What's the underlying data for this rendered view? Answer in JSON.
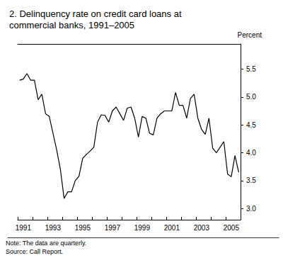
{
  "chart_data": {
    "type": "line",
    "title": "2. Delinquency rate on credit card loans at commercial banks, 1991–2005",
    "y_label": "Percent",
    "notes": [
      "Note: The data are quarterly.",
      "Source: Call Report."
    ],
    "categories": [
      null,
      "1991",
      null,
      null,
      null,
      null,
      null,
      null,
      null,
      "1993",
      null,
      null,
      null,
      null,
      null,
      null,
      null,
      "1995",
      null,
      null,
      null,
      null,
      null,
      null,
      null,
      "1997",
      null,
      null,
      null,
      null,
      null,
      null,
      null,
      "1999",
      null,
      null,
      null,
      null,
      null,
      null,
      null,
      "2001",
      null,
      null,
      null,
      null,
      null,
      null,
      null,
      "2003",
      null,
      null,
      null,
      null,
      null,
      null,
      null,
      "2005",
      null,
      null
    ],
    "values": [
      5.3,
      5.32,
      5.42,
      5.3,
      5.3,
      4.95,
      5.05,
      4.7,
      4.65,
      4.35,
      4.05,
      3.7,
      3.18,
      3.3,
      3.3,
      3.5,
      3.58,
      3.9,
      3.97,
      4.03,
      4.1,
      4.55,
      4.68,
      4.67,
      4.55,
      4.75,
      4.82,
      4.7,
      4.58,
      4.8,
      4.82,
      4.62,
      4.28,
      4.65,
      4.62,
      4.35,
      4.32,
      4.62,
      4.7,
      4.75,
      4.75,
      4.75,
      5.08,
      4.85,
      4.85,
      4.62,
      4.97,
      5.05,
      4.62,
      4.42,
      4.33,
      4.62,
      4.08,
      4.0,
      4.1,
      4.2,
      3.62,
      3.57,
      3.95,
      3.65
    ],
    "color": "#000000",
    "ylim": [
      2.8,
      5.95
    ],
    "yticks": [
      {
        "value": 3,
        "label": "3.0"
      },
      {
        "value": 3.5,
        "label": "3.5"
      },
      {
        "value": 4,
        "label": "4.0"
      },
      {
        "value": 4.5,
        "label": "4.5"
      },
      {
        "value": 5,
        "label": "5.0"
      },
      {
        "value": 5.5,
        "label": "5.5"
      }
    ],
    "grid": false
  }
}
